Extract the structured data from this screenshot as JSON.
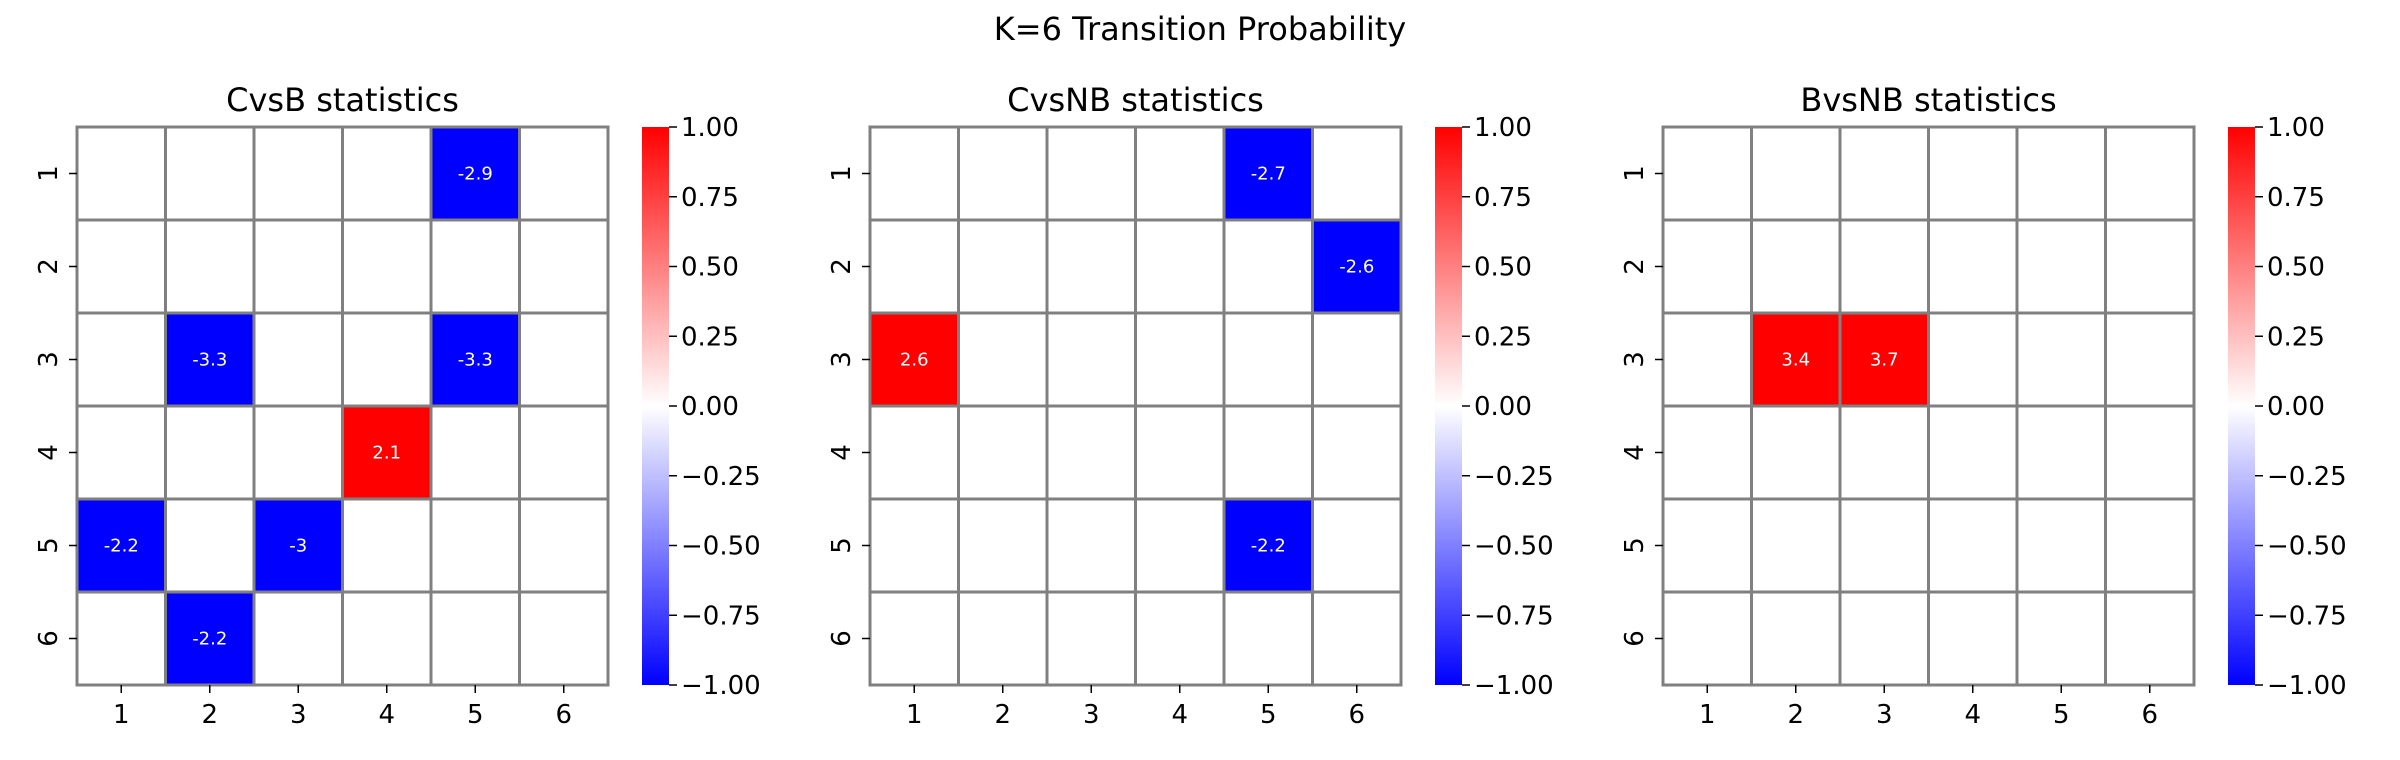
{
  "suptitle": "K=6 Transition Probability",
  "colors": {
    "negative": "#0000ff",
    "zero": "#ffffff",
    "positive": "#ff0000",
    "gridline": "#808080"
  },
  "chart_data": [
    {
      "type": "heatmap",
      "title": "CvsB statistics",
      "x_ticks": [
        "1",
        "2",
        "3",
        "4",
        "5",
        "6"
      ],
      "y_ticks": [
        "1",
        "2",
        "3",
        "4",
        "5",
        "6"
      ],
      "colorbar": {
        "vmin": -1.0,
        "vmax": 1.0,
        "ticks": [
          "1.00",
          "0.75",
          "0.50",
          "0.25",
          "0.00",
          "−0.25",
          "−0.50",
          "−0.75",
          "−1.00"
        ]
      },
      "cells": [
        {
          "row": 1,
          "col": 5,
          "value": -2.9,
          "label": "-2.9"
        },
        {
          "row": 3,
          "col": 2,
          "value": -3.3,
          "label": "-3.3"
        },
        {
          "row": 3,
          "col": 5,
          "value": -3.3,
          "label": "-3.3"
        },
        {
          "row": 4,
          "col": 4,
          "value": 2.1,
          "label": "2.1"
        },
        {
          "row": 5,
          "col": 1,
          "value": -2.2,
          "label": "-2.2"
        },
        {
          "row": 5,
          "col": 3,
          "value": -3.0,
          "label": "-3"
        },
        {
          "row": 6,
          "col": 2,
          "value": -2.2,
          "label": "-2.2"
        }
      ]
    },
    {
      "type": "heatmap",
      "title": "CvsNB statistics",
      "x_ticks": [
        "1",
        "2",
        "3",
        "4",
        "5",
        "6"
      ],
      "y_ticks": [
        "1",
        "2",
        "3",
        "4",
        "5",
        "6"
      ],
      "colorbar": {
        "vmin": -1.0,
        "vmax": 1.0,
        "ticks": [
          "1.00",
          "0.75",
          "0.50",
          "0.25",
          "0.00",
          "−0.25",
          "−0.50",
          "−0.75",
          "−1.00"
        ]
      },
      "cells": [
        {
          "row": 1,
          "col": 5,
          "value": -2.7,
          "label": "-2.7"
        },
        {
          "row": 2,
          "col": 6,
          "value": -2.6,
          "label": "-2.6"
        },
        {
          "row": 3,
          "col": 1,
          "value": 2.6,
          "label": "2.6"
        },
        {
          "row": 5,
          "col": 5,
          "value": -2.2,
          "label": "-2.2"
        }
      ]
    },
    {
      "type": "heatmap",
      "title": "BvsNB statistics",
      "x_ticks": [
        "1",
        "2",
        "3",
        "4",
        "5",
        "6"
      ],
      "y_ticks": [
        "1",
        "2",
        "3",
        "4",
        "5",
        "6"
      ],
      "colorbar": {
        "vmin": -1.0,
        "vmax": 1.0,
        "ticks": [
          "1.00",
          "0.75",
          "0.50",
          "0.25",
          "0.00",
          "−0.25",
          "−0.50",
          "−0.75",
          "−1.00"
        ]
      },
      "cells": [
        {
          "row": 3,
          "col": 2,
          "value": 3.4,
          "label": "3.4"
        },
        {
          "row": 3,
          "col": 3,
          "value": 3.7,
          "label": "3.7"
        }
      ]
    }
  ]
}
